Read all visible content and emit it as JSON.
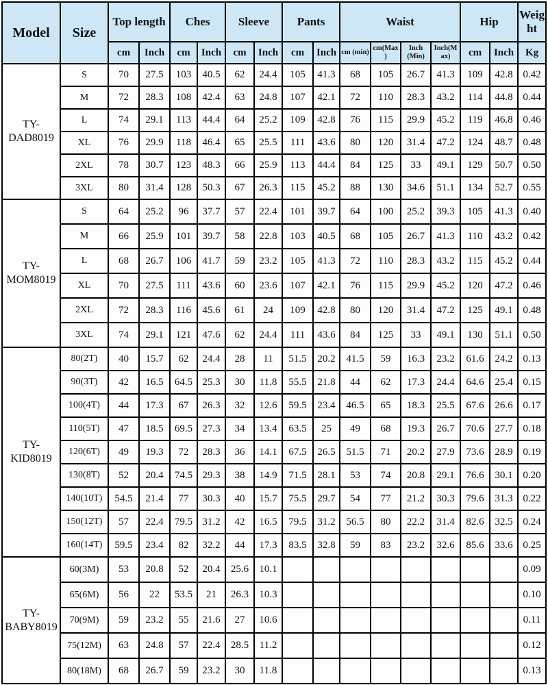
{
  "colors": {
    "header_bg": "#cde7f6",
    "border": "#000000"
  },
  "table": {
    "header": {
      "model": "Model",
      "size": "Size",
      "groups": [
        {
          "label": "Top length",
          "subs": [
            "cm",
            "Inch"
          ]
        },
        {
          "label": "Ches",
          "subs": [
            "cm",
            "Inch"
          ]
        },
        {
          "label": "Sleeve",
          "subs": [
            "cm",
            "Inch"
          ]
        },
        {
          "label": "Pants",
          "subs": [
            "cm",
            "Inch"
          ]
        },
        {
          "label": "Waist",
          "subs": [
            "cm (min)",
            "cm(Max)",
            "Inch (Min)",
            "Inch(Max)"
          ]
        },
        {
          "label": "Hip",
          "subs": [
            "cm",
            "Inch"
          ]
        },
        {
          "label": "Weight",
          "subs": [
            "Kg"
          ]
        }
      ]
    },
    "sections": [
      {
        "id": "dad",
        "model": "TY-DAD8019",
        "rows": [
          {
            "size": "S",
            "values": [
              "70",
              "27.5",
              "103",
              "40.5",
              "62",
              "24.4",
              "105",
              "41.3",
              "68",
              "105",
              "26.7",
              "41.3",
              "109",
              "42.8",
              "0.42"
            ]
          },
          {
            "size": "M",
            "values": [
              "72",
              "28.3",
              "108",
              "42.4",
              "63",
              "24.8",
              "107",
              "42.1",
              "72",
              "110",
              "28.3",
              "43.2",
              "114",
              "44.8",
              "0.44"
            ]
          },
          {
            "size": "L",
            "values": [
              "74",
              "29.1",
              "113",
              "44.4",
              "64",
              "25.2",
              "109",
              "42.8",
              "76",
              "115",
              "29.9",
              "45.2",
              "119",
              "46.8",
              "0.46"
            ]
          },
          {
            "size": "XL",
            "values": [
              "76",
              "29.9",
              "118",
              "46.4",
              "65",
              "25.5",
              "111",
              "43.6",
              "80",
              "120",
              "31.4",
              "47.2",
              "124",
              "48.7",
              "0.48"
            ]
          },
          {
            "size": "2XL",
            "values": [
              "78",
              "30.7",
              "123",
              "48.3",
              "66",
              "25.9",
              "113",
              "44.4",
              "84",
              "125",
              "33",
              "49.1",
              "129",
              "50.7",
              "0.50"
            ]
          },
          {
            "size": "3XL",
            "values": [
              "80",
              "31.4",
              "128",
              "50.3",
              "67",
              "26.3",
              "115",
              "45.2",
              "88",
              "130",
              "34.6",
              "51.1",
              "134",
              "52.7",
              "0.55"
            ]
          }
        ]
      },
      {
        "id": "mom",
        "model": "TY-MOM8019",
        "rows": [
          {
            "size": "S",
            "values": [
              "64",
              "25.2",
              "96",
              "37.7",
              "57",
              "22.4",
              "101",
              "39.7",
              "64",
              "100",
              "25.2",
              "39.3",
              "105",
              "41.3",
              "0.40"
            ]
          },
          {
            "size": "M",
            "values": [
              "66",
              "25.9",
              "101",
              "39.7",
              "58",
              "22.8",
              "103",
              "40.5",
              "68",
              "105",
              "26.7",
              "41.3",
              "110",
              "43.2",
              "0.42"
            ]
          },
          {
            "size": "L",
            "values": [
              "68",
              "26.7",
              "106",
              "41.7",
              "59",
              "23.2",
              "105",
              "41.3",
              "72",
              "110",
              "28.3",
              "43.2",
              "115",
              "45.2",
              "0.44"
            ]
          },
          {
            "size": "XL",
            "values": [
              "70",
              "27.5",
              "111",
              "43.6",
              "60",
              "23.6",
              "107",
              "42.1",
              "76",
              "115",
              "29.9",
              "45.2",
              "120",
              "47.2",
              "0.46"
            ]
          },
          {
            "size": "2XL",
            "values": [
              "72",
              "28.3",
              "116",
              "45.6",
              "61",
              "24",
              "109",
              "42.8",
              "80",
              "120",
              "31.4",
              "47.2",
              "125",
              "49.1",
              "0.48"
            ]
          },
          {
            "size": "3XL",
            "values": [
              "74",
              "29.1",
              "121",
              "47.6",
              "62",
              "24.4",
              "111",
              "43.6",
              "84",
              "125",
              "33",
              "49.1",
              "130",
              "51.1",
              "0.50"
            ]
          }
        ]
      },
      {
        "id": "kid",
        "model": "TY-KID8019",
        "rows": [
          {
            "size": "80(2T)",
            "values": [
              "40",
              "15.7",
              "62",
              "24.4",
              "28",
              "11",
              "51.5",
              "20.2",
              "41.5",
              "59",
              "16.3",
              "23.2",
              "61.6",
              "24.2",
              "0.13"
            ]
          },
          {
            "size": "90(3T)",
            "values": [
              "42",
              "16.5",
              "64.5",
              "25.3",
              "30",
              "11.8",
              "55.5",
              "21.8",
              "44",
              "62",
              "17.3",
              "24.4",
              "64.6",
              "25.4",
              "0.15"
            ]
          },
          {
            "size": "100(4T)",
            "values": [
              "44",
              "17.3",
              "67",
              "26.3",
              "32",
              "12.6",
              "59.5",
              "23.4",
              "46.5",
              "65",
              "18.3",
              "25.5",
              "67.6",
              "26.6",
              "0.17"
            ]
          },
          {
            "size": "110(5T)",
            "values": [
              "47",
              "18.5",
              "69.5",
              "27.3",
              "34",
              "13.4",
              "63.5",
              "25",
              "49",
              "68",
              "19.3",
              "26.7",
              "70.6",
              "27.7",
              "0.18"
            ]
          },
          {
            "size": "120(6T)",
            "values": [
              "49",
              "19.3",
              "72",
              "28.3",
              "36",
              "14.1",
              "67.5",
              "26.5",
              "51.5",
              "71",
              "20.2",
              "27.9",
              "73.6",
              "28.9",
              "0.19"
            ]
          },
          {
            "size": "130(8T)",
            "values": [
              "52",
              "20.4",
              "74.5",
              "29.3",
              "38",
              "14.9",
              "71.5",
              "28.1",
              "53",
              "74",
              "20.8",
              "29.1",
              "76.6",
              "30.1",
              "0.20"
            ]
          },
          {
            "size": "140(10T)",
            "values": [
              "54.5",
              "21.4",
              "77",
              "30.3",
              "40",
              "15.7",
              "75.5",
              "29.7",
              "54",
              "77",
              "21.2",
              "30.3",
              "79.6",
              "31.3",
              "0.22"
            ]
          },
          {
            "size": "150(12T)",
            "values": [
              "57",
              "22.4",
              "79.5",
              "31.2",
              "42",
              "16.5",
              "79.5",
              "31.2",
              "56.5",
              "80",
              "22.2",
              "31.4",
              "82.6",
              "32.5",
              "0.24"
            ]
          },
          {
            "size": "160(14T)",
            "values": [
              "59.5",
              "23.4",
              "82",
              "32.2",
              "44",
              "17.3",
              "83.5",
              "32.8",
              "59",
              "83",
              "23.2",
              "32.6",
              "85.6",
              "33.6",
              "0.25"
            ]
          }
        ]
      },
      {
        "id": "baby",
        "model": "TY-BABY8019",
        "rows": [
          {
            "size": "60(3M)",
            "values": [
              "53",
              "20.8",
              "52",
              "20.4",
              "25.6",
              "10.1",
              "",
              "",
              "",
              "",
              "",
              "",
              "",
              "",
              "0.09"
            ]
          },
          {
            "size": "65(6M)",
            "values": [
              "56",
              "22",
              "53.5",
              "21",
              "26.3",
              "10.3",
              "",
              "",
              "",
              "",
              "",
              "",
              "",
              "",
              "0.10"
            ]
          },
          {
            "size": "70(9M)",
            "values": [
              "59",
              "23.2",
              "55",
              "21.6",
              "27",
              "10.6",
              "",
              "",
              "",
              "",
              "",
              "",
              "",
              "",
              "0.11"
            ]
          },
          {
            "size": "75(12M)",
            "values": [
              "63",
              "24.8",
              "57",
              "22.4",
              "28.5",
              "11.2",
              "",
              "",
              "",
              "",
              "",
              "",
              "",
              "",
              "0.12"
            ]
          },
          {
            "size": "80(18M)",
            "values": [
              "68",
              "26.7",
              "59",
              "23.2",
              "30",
              "11.8",
              "",
              "",
              "",
              "",
              "",
              "",
              "",
              "",
              "0.13"
            ]
          }
        ]
      }
    ]
  }
}
